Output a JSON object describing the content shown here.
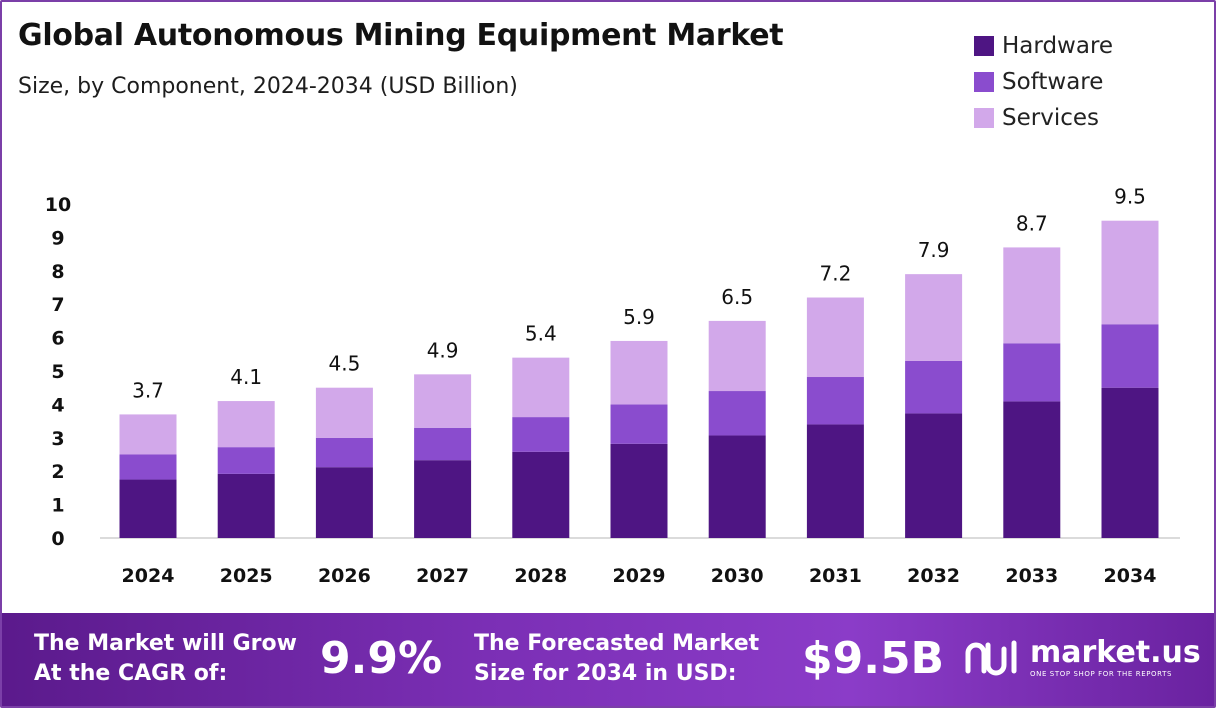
{
  "header": {
    "title": "Global Autonomous Mining Equipment Market",
    "subtitle": "Size, by Component, 2024-2034 (USD Billion)"
  },
  "colors": {
    "hardware": "#4e1583",
    "software": "#8a4cce",
    "services": "#d2a8ea",
    "axis": "#cfcfcf",
    "frame": "#7b3fa8"
  },
  "chart_data": {
    "type": "bar",
    "stacked": true,
    "categories": [
      "2024",
      "2025",
      "2026",
      "2027",
      "2028",
      "2029",
      "2030",
      "2031",
      "2032",
      "2033",
      "2034"
    ],
    "series": [
      {
        "name": "Hardware",
        "values": [
          1.75,
          1.92,
          2.12,
          2.33,
          2.58,
          2.82,
          3.07,
          3.4,
          3.73,
          4.09,
          4.5
        ]
      },
      {
        "name": "Software",
        "values": [
          0.75,
          0.8,
          0.88,
          0.97,
          1.04,
          1.18,
          1.33,
          1.42,
          1.57,
          1.74,
          1.9
        ]
      },
      {
        "name": "Services",
        "values": [
          1.2,
          1.38,
          1.5,
          1.6,
          1.78,
          1.9,
          2.1,
          2.38,
          2.6,
          2.87,
          3.1
        ]
      }
    ],
    "totals": [
      "3.7",
      "4.1",
      "4.5",
      "4.9",
      "5.4",
      "5.9",
      "6.5",
      "7.2",
      "7.9",
      "8.7",
      "9.5"
    ],
    "ylim": [
      0,
      10
    ],
    "yticks": [
      "0",
      "1",
      "2",
      "3",
      "4",
      "5",
      "6",
      "7",
      "8",
      "9",
      "10"
    ],
    "grid": false,
    "legend_position": "top-right"
  },
  "footer": {
    "cagr_line1": "The Market will Grow",
    "cagr_line2": "At the CAGR of:",
    "cagr_value": "9.9%",
    "forecast_line1": "The Forecasted Market",
    "forecast_line2": "Size for 2034 in USD:",
    "forecast_value": "$9.5B",
    "brand_name": "market.us",
    "brand_tagline": "ONE STOP SHOP FOR THE REPORTS"
  }
}
